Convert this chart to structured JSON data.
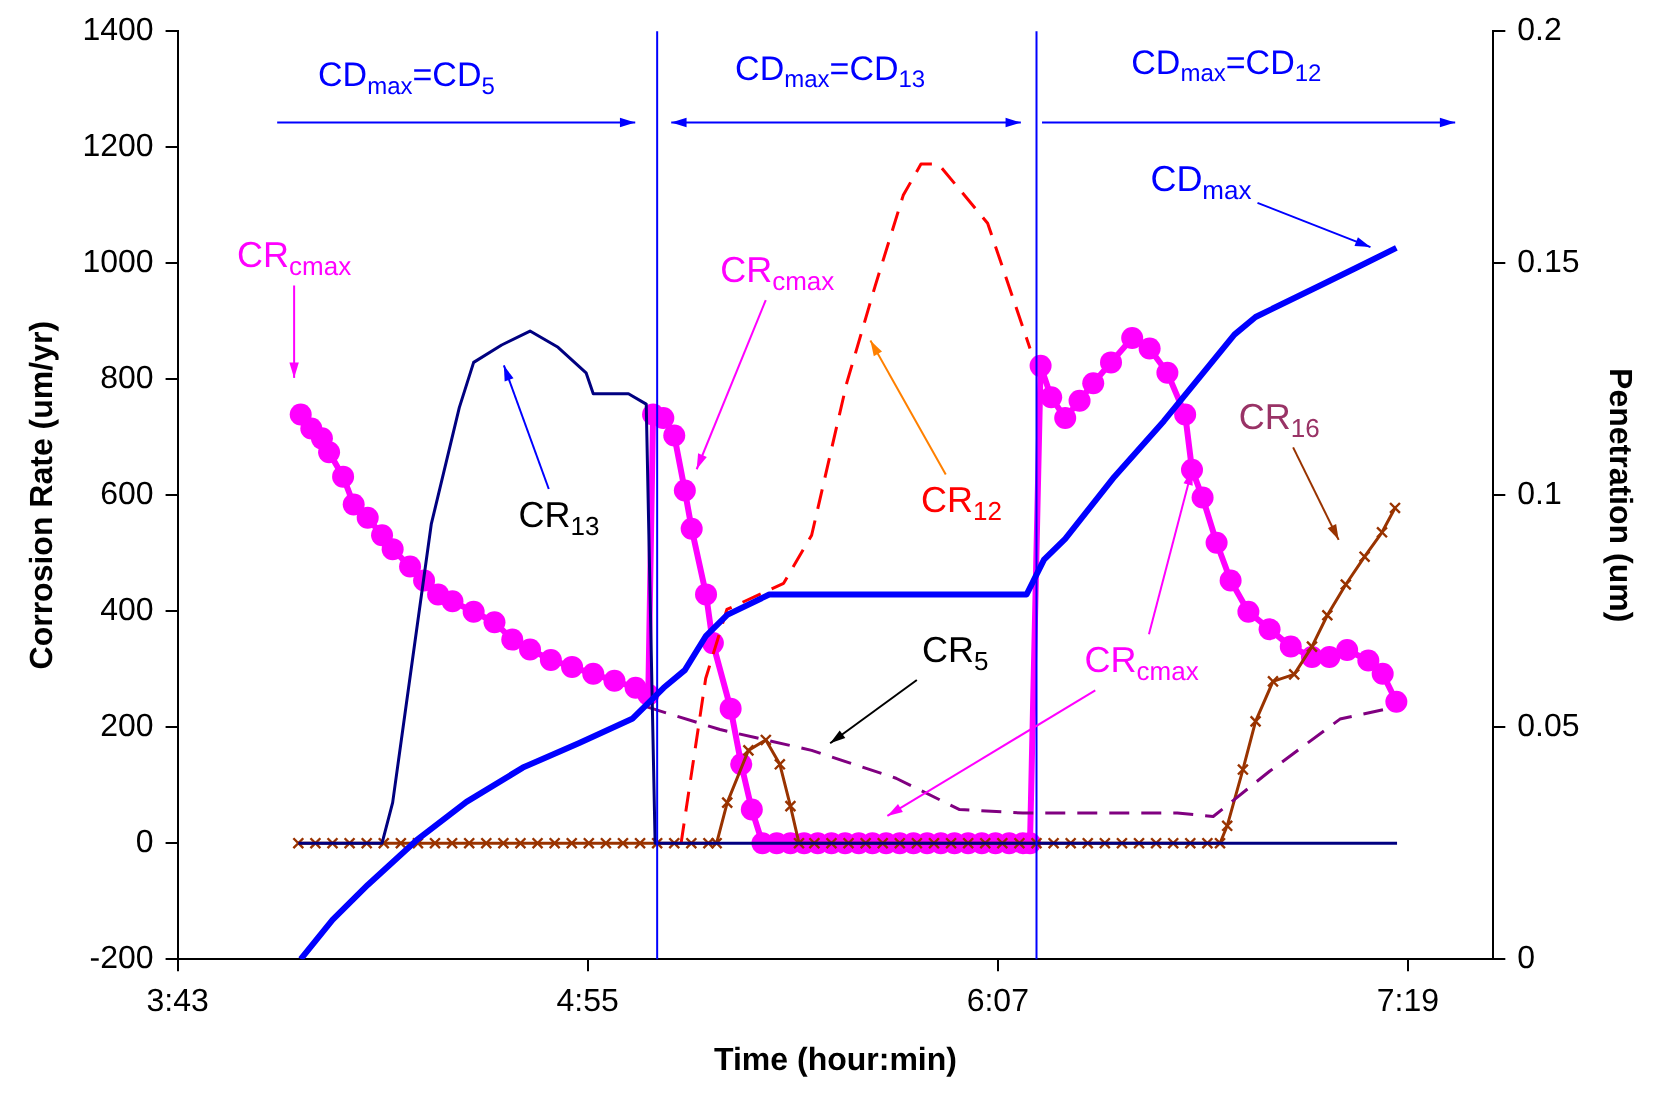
{
  "chart_data": {
    "type": "line",
    "xlabel": "Time (hour:min)",
    "ylabel": "Corrosion Rate (um/yr)",
    "y2label": "Penetration (um)",
    "xlim": [
      3.7167,
      7.5667
    ],
    "xticks": [
      {
        "value": 3.7167,
        "label": "3:43"
      },
      {
        "value": 4.9167,
        "label": "4:55"
      },
      {
        "value": 6.1167,
        "label": "6:07"
      },
      {
        "value": 7.3167,
        "label": "7:19"
      }
    ],
    "ylim": [
      -200,
      1400
    ],
    "yticks": [
      -200,
      0,
      200,
      400,
      600,
      800,
      1000,
      1200,
      1400
    ],
    "y2lim": [
      0,
      0.2
    ],
    "y2ticks": [
      0,
      0.05,
      0.1,
      0.15,
      0.2
    ],
    "grid": false,
    "legend": false,
    "series": [
      {
        "color": "#000080",
        "marker": "none",
        "line_style": "solid",
        "x": [
          4.07,
          4.315,
          4.346,
          4.459,
          4.541,
          4.583,
          4.665,
          4.748,
          4.83,
          4.912,
          4.933,
          5.036,
          5.088,
          5.114,
          7.285
        ],
        "values": [
          0,
          0,
          70,
          550,
          751,
          829,
          859,
          883,
          855,
          811,
          775,
          775,
          757,
          0,
          0
        ]
      },
      {
        "color": "#ff0000",
        "marker": "none",
        "line_style": "dashed",
        "x": [
          5.19,
          5.262,
          5.324,
          5.49,
          5.572,
          5.675,
          5.758,
          5.84,
          5.892,
          5.943,
          6.087,
          6.211
        ],
        "values": [
          0,
          284,
          403,
          448,
          531,
          794,
          961,
          1117,
          1171,
          1171,
          1069,
          853
        ]
      },
      {
        "color": "#800080",
        "marker": "none",
        "line_style": "dashed",
        "x": [
          5.09,
          5.304,
          5.572,
          5.819,
          6.005,
          6.19,
          6.642,
          6.747,
          6.912,
          7.118,
          7.26
        ],
        "values": [
          235,
          196,
          160,
          112,
          58,
          52,
          52,
          46,
          124,
          214,
          232
        ]
      },
      {
        "color": "#993300",
        "marker": "cross",
        "line_style": "solid",
        "x": [
          4.07,
          4.12,
          4.17,
          4.22,
          4.27,
          4.32,
          4.37,
          4.42,
          4.47,
          4.52,
          4.57,
          4.62,
          4.67,
          4.72,
          4.77,
          4.82,
          4.87,
          4.92,
          4.97,
          5.02,
          5.07,
          5.12,
          5.17,
          5.22,
          5.27,
          5.294,
          5.325,
          5.387,
          5.438,
          5.479,
          5.51,
          5.535,
          5.58,
          5.63,
          5.68,
          5.73,
          5.78,
          5.83,
          5.88,
          5.93,
          5.98,
          6.03,
          6.08,
          6.13,
          6.18,
          6.23,
          6.28,
          6.33,
          6.38,
          6.43,
          6.48,
          6.53,
          6.58,
          6.63,
          6.68,
          6.73,
          6.767,
          6.788,
          6.834,
          6.871,
          6.922,
          6.984,
          7.036,
          7.081,
          7.135,
          7.19,
          7.241,
          7.279
        ],
        "values": [
          0,
          0,
          0,
          0,
          0,
          0,
          0,
          0,
          0,
          0,
          0,
          0,
          0,
          0,
          0,
          0,
          0,
          0,
          0,
          0,
          0,
          0,
          0,
          0,
          0,
          0,
          70,
          160,
          178,
          136,
          64,
          0,
          0,
          0,
          0,
          0,
          0,
          0,
          0,
          0,
          0,
          0,
          0,
          0,
          0,
          0,
          0,
          0,
          0,
          0,
          0,
          0,
          0,
          0,
          0,
          0,
          0,
          30,
          127,
          210,
          279,
          291,
          339,
          393,
          446,
          494,
          536,
          578
        ]
      },
      {
        "color": "#ff00ff",
        "marker": "circle",
        "line_style": "solid",
        "x": [
          4.077,
          4.108,
          4.139,
          4.16,
          4.201,
          4.232,
          4.273,
          4.315,
          4.346,
          4.397,
          4.438,
          4.479,
          4.521,
          4.583,
          4.644,
          4.696,
          4.748,
          4.809,
          4.871,
          4.933,
          4.995,
          5.057,
          5.094,
          5.108,
          5.138,
          5.17,
          5.201,
          5.221,
          5.263,
          5.283,
          5.335,
          5.366,
          5.397,
          5.428,
          5.47,
          5.51,
          5.55,
          5.59,
          5.63,
          5.67,
          5.71,
          5.75,
          5.79,
          5.83,
          5.87,
          5.91,
          5.95,
          5.99,
          6.03,
          6.07,
          6.11,
          6.15,
          6.19,
          6.211,
          6.242,
          6.273,
          6.314,
          6.356,
          6.396,
          6.448,
          6.51,
          6.561,
          6.613,
          6.665,
          6.685,
          6.716,
          6.757,
          6.798,
          6.85,
          6.912,
          6.974,
          7.036,
          7.087,
          7.139,
          7.201,
          7.243,
          7.283
        ],
        "values": [
          739,
          715,
          698,
          674,
          632,
          584,
          561,
          531,
          507,
          477,
          453,
          429,
          417,
          399,
          381,
          351,
          334,
          316,
          304,
          292,
          280,
          268,
          256,
          739,
          733,
          703,
          608,
          542,
          429,
          345,
          232,
          136,
          58,
          0,
          0,
          0,
          0,
          0,
          0,
          0,
          0,
          0,
          0,
          0,
          0,
          0,
          0,
          0,
          0,
          0,
          0,
          0,
          0,
          0,
          823,
          769,
          733,
          763,
          793,
          829,
          871,
          853,
          811,
          739,
          644,
          596,
          518,
          453,
          399,
          369,
          339,
          321,
          321,
          333,
          315,
          292,
          244
        ]
      },
      {
        "color": "#0000ff",
        "marker": "none",
        "line_style": "solid",
        "axis": "y2",
        "x": [
          4.077,
          4.17,
          4.273,
          4.417,
          4.562,
          4.727,
          4.892,
          5.047,
          5.139,
          5.201,
          5.263,
          5.325,
          5.448,
          6.201,
          6.252,
          6.314,
          6.458,
          6.603,
          6.809,
          6.871,
          7.057,
          7.16,
          7.283
        ],
        "values": [
          0,
          0.0085,
          0.016,
          0.0257,
          0.0339,
          0.0413,
          0.0466,
          0.0518,
          0.0585,
          0.0623,
          0.0697,
          0.0742,
          0.0786,
          0.0786,
          0.0861,
          0.0906,
          0.104,
          0.116,
          0.1346,
          0.1384,
          0.1451,
          0.1488,
          0.1533
        ]
      }
    ],
    "ref_lines": [
      {
        "axis": "x",
        "value": 5.12,
        "color": "#0000ff"
      },
      {
        "axis": "x",
        "value": 6.23,
        "color": "#0000ff"
      }
    ],
    "annotations": [
      "CD$_{max}$=CD$_{5}$",
      "CD$_{max}$=CD$_{13}$",
      "CD$_{max}$=CD$_{12}$",
      "CR$_{cmax}$",
      "CR$_{13}$",
      "CR$_{cmax}$",
      "CR$_{12}$",
      "CR$_{5}$",
      {
        "text": "CR$_{cmax}$",
        "x": 6.685,
        "y": 644
      },
      "CR$_{16}$",
      "CD$_{max}$"
    ]
  }
}
